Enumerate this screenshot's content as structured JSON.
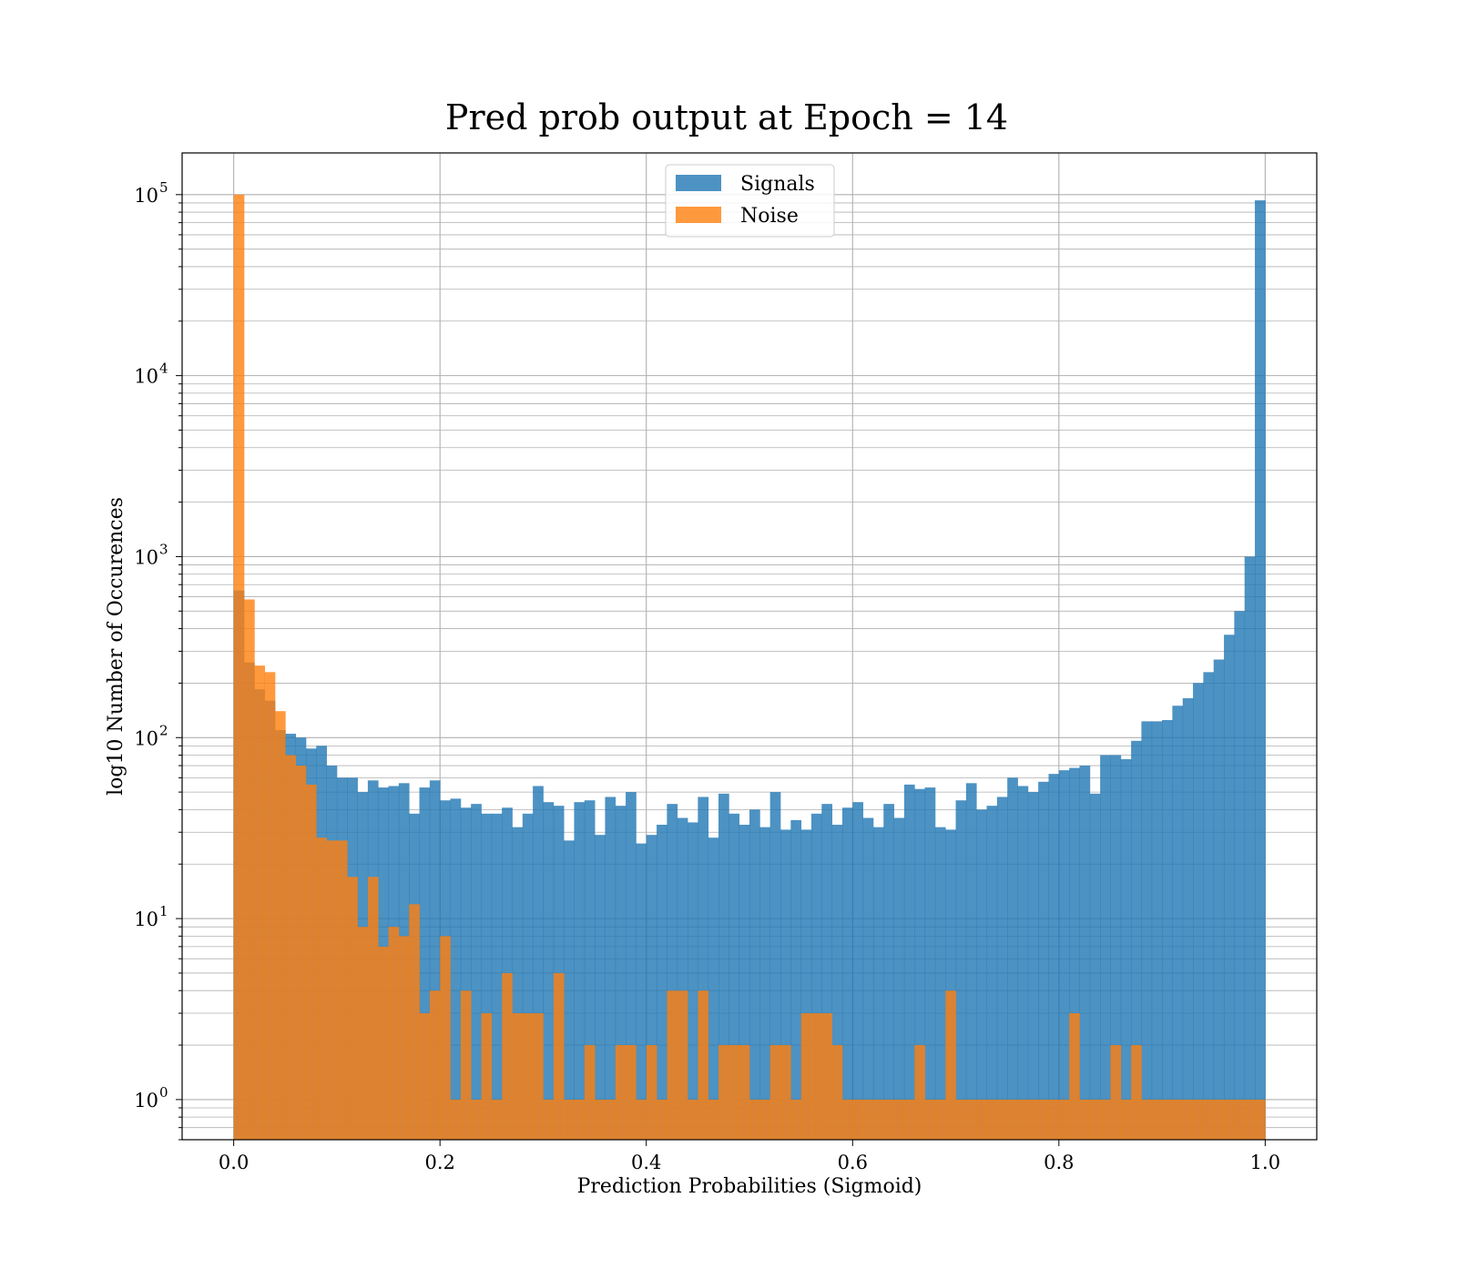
{
  "chart_data": {
    "type": "bar",
    "title": "Pred prob output at Epoch = 14",
    "xlabel": "Prediction Probabilities (Sigmoid)",
    "ylabel": "log10 Number of Occurences",
    "y_scale": "log",
    "xlim": [
      -0.05,
      1.05
    ],
    "ylim": [
      0.6,
      170000
    ],
    "x_ticks": [
      0.0,
      0.2,
      0.4,
      0.6,
      0.8,
      1.0
    ],
    "x_tick_labels": [
      "0.0",
      "0.2",
      "0.4",
      "0.6",
      "0.8",
      "1.0"
    ],
    "y_ticks": [
      {
        "value": 1,
        "base": "10",
        "exp": "0"
      },
      {
        "value": 10,
        "base": "10",
        "exp": "1"
      },
      {
        "value": 100,
        "base": "10",
        "exp": "2"
      },
      {
        "value": 1000,
        "base": "10",
        "exp": "3"
      },
      {
        "value": 10000,
        "base": "10",
        "exp": "4"
      },
      {
        "value": 100000,
        "base": "10",
        "exp": "5"
      }
    ],
    "grid": true,
    "legend_position": "top-center",
    "bin_start": 0.0,
    "bin_width": 0.01,
    "series": [
      {
        "name": "Signals",
        "color": "#1f77b4",
        "opacity": 0.8,
        "values": [
          650,
          260,
          185,
          160,
          110,
          105,
          100,
          87,
          90,
          70,
          60,
          60,
          50,
          58,
          53,
          54,
          56,
          38,
          53,
          58,
          45,
          46,
          41,
          43,
          38,
          38,
          41,
          32,
          38,
          54,
          44,
          42,
          27,
          44,
          45,
          29,
          47,
          42,
          50,
          26,
          29,
          33,
          43,
          36,
          34,
          47,
          28,
          49,
          38,
          33,
          40,
          32,
          50,
          31,
          35,
          31,
          38,
          43,
          33,
          41,
          44,
          36,
          32,
          43,
          36,
          55,
          52,
          53,
          32,
          31,
          45,
          56,
          40,
          42,
          47,
          60,
          54,
          50,
          57,
          63,
          66,
          68,
          70,
          49,
          80,
          80,
          76,
          96,
          123,
          123,
          125,
          150,
          165,
          200,
          230,
          270,
          370,
          500,
          1000,
          93000
        ]
      },
      {
        "name": "Noise",
        "color": "#ff7f0e",
        "opacity": 0.8,
        "values": [
          100000,
          580,
          250,
          230,
          140,
          80,
          70,
          55,
          28,
          27,
          27,
          17,
          9,
          17,
          7,
          9,
          8,
          12,
          3,
          4,
          8,
          1,
          4,
          1,
          3,
          1,
          5,
          3,
          3,
          3,
          1,
          5,
          1,
          1,
          2,
          1,
          1,
          2,
          2,
          1,
          2,
          1,
          4,
          4,
          1,
          4,
          1,
          2,
          2,
          2,
          1,
          1,
          2,
          2,
          1,
          3,
          3,
          3,
          2,
          1,
          1,
          1,
          1,
          1,
          1,
          1,
          2,
          1,
          1,
          4,
          1,
          1,
          1,
          1,
          1,
          1,
          1,
          1,
          1,
          1,
          1,
          3,
          1,
          1,
          1,
          2,
          1,
          2,
          1,
          1,
          1,
          1,
          1,
          1,
          1,
          1,
          1,
          1,
          1,
          1
        ]
      }
    ]
  }
}
